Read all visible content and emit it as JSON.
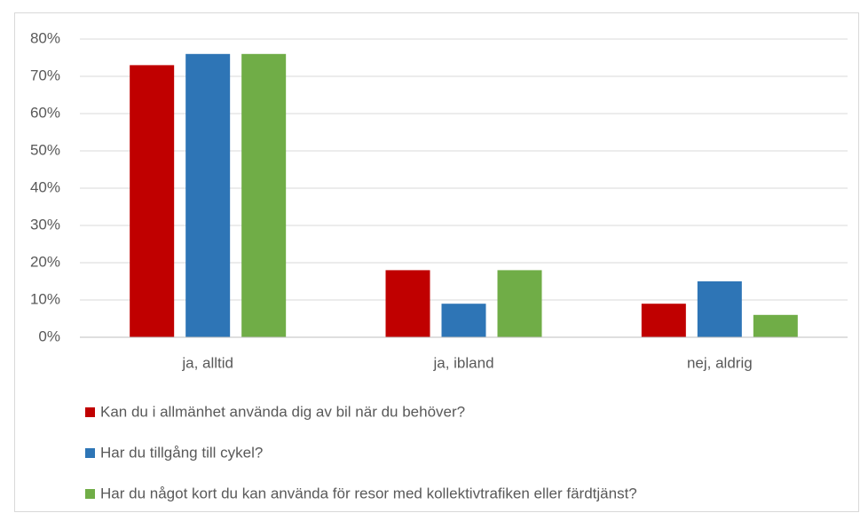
{
  "chart_data": {
    "type": "bar",
    "categories": [
      "ja, alltid",
      "ja, ibland",
      "nej, aldrig"
    ],
    "series": [
      {
        "name": "Kan du i allmänhet använda dig av bil när du behöver?",
        "color": "#c00000",
        "values": [
          73,
          18,
          9
        ]
      },
      {
        "name": "Har du tillgång till cykel?",
        "color": "#2e75b6",
        "values": [
          76,
          9,
          15
        ]
      },
      {
        "name": "Har du något kort du kan använda för resor med kollektivtrafiken eller färdtjänst?",
        "color": "#70ad47",
        "values": [
          76,
          18,
          6
        ]
      }
    ],
    "ylim": [
      0,
      80
    ],
    "yticks": [
      {
        "value": 0,
        "label": "0%"
      },
      {
        "value": 10,
        "label": "10%"
      },
      {
        "value": 20,
        "label": "20%"
      },
      {
        "value": 30,
        "label": "30%"
      },
      {
        "value": 40,
        "label": "40%"
      },
      {
        "value": 50,
        "label": "50%"
      },
      {
        "value": 60,
        "label": "60%"
      },
      {
        "value": 70,
        "label": "70%"
      },
      {
        "value": 80,
        "label": "80%"
      }
    ],
    "grid": true,
    "legend": "bottom"
  }
}
